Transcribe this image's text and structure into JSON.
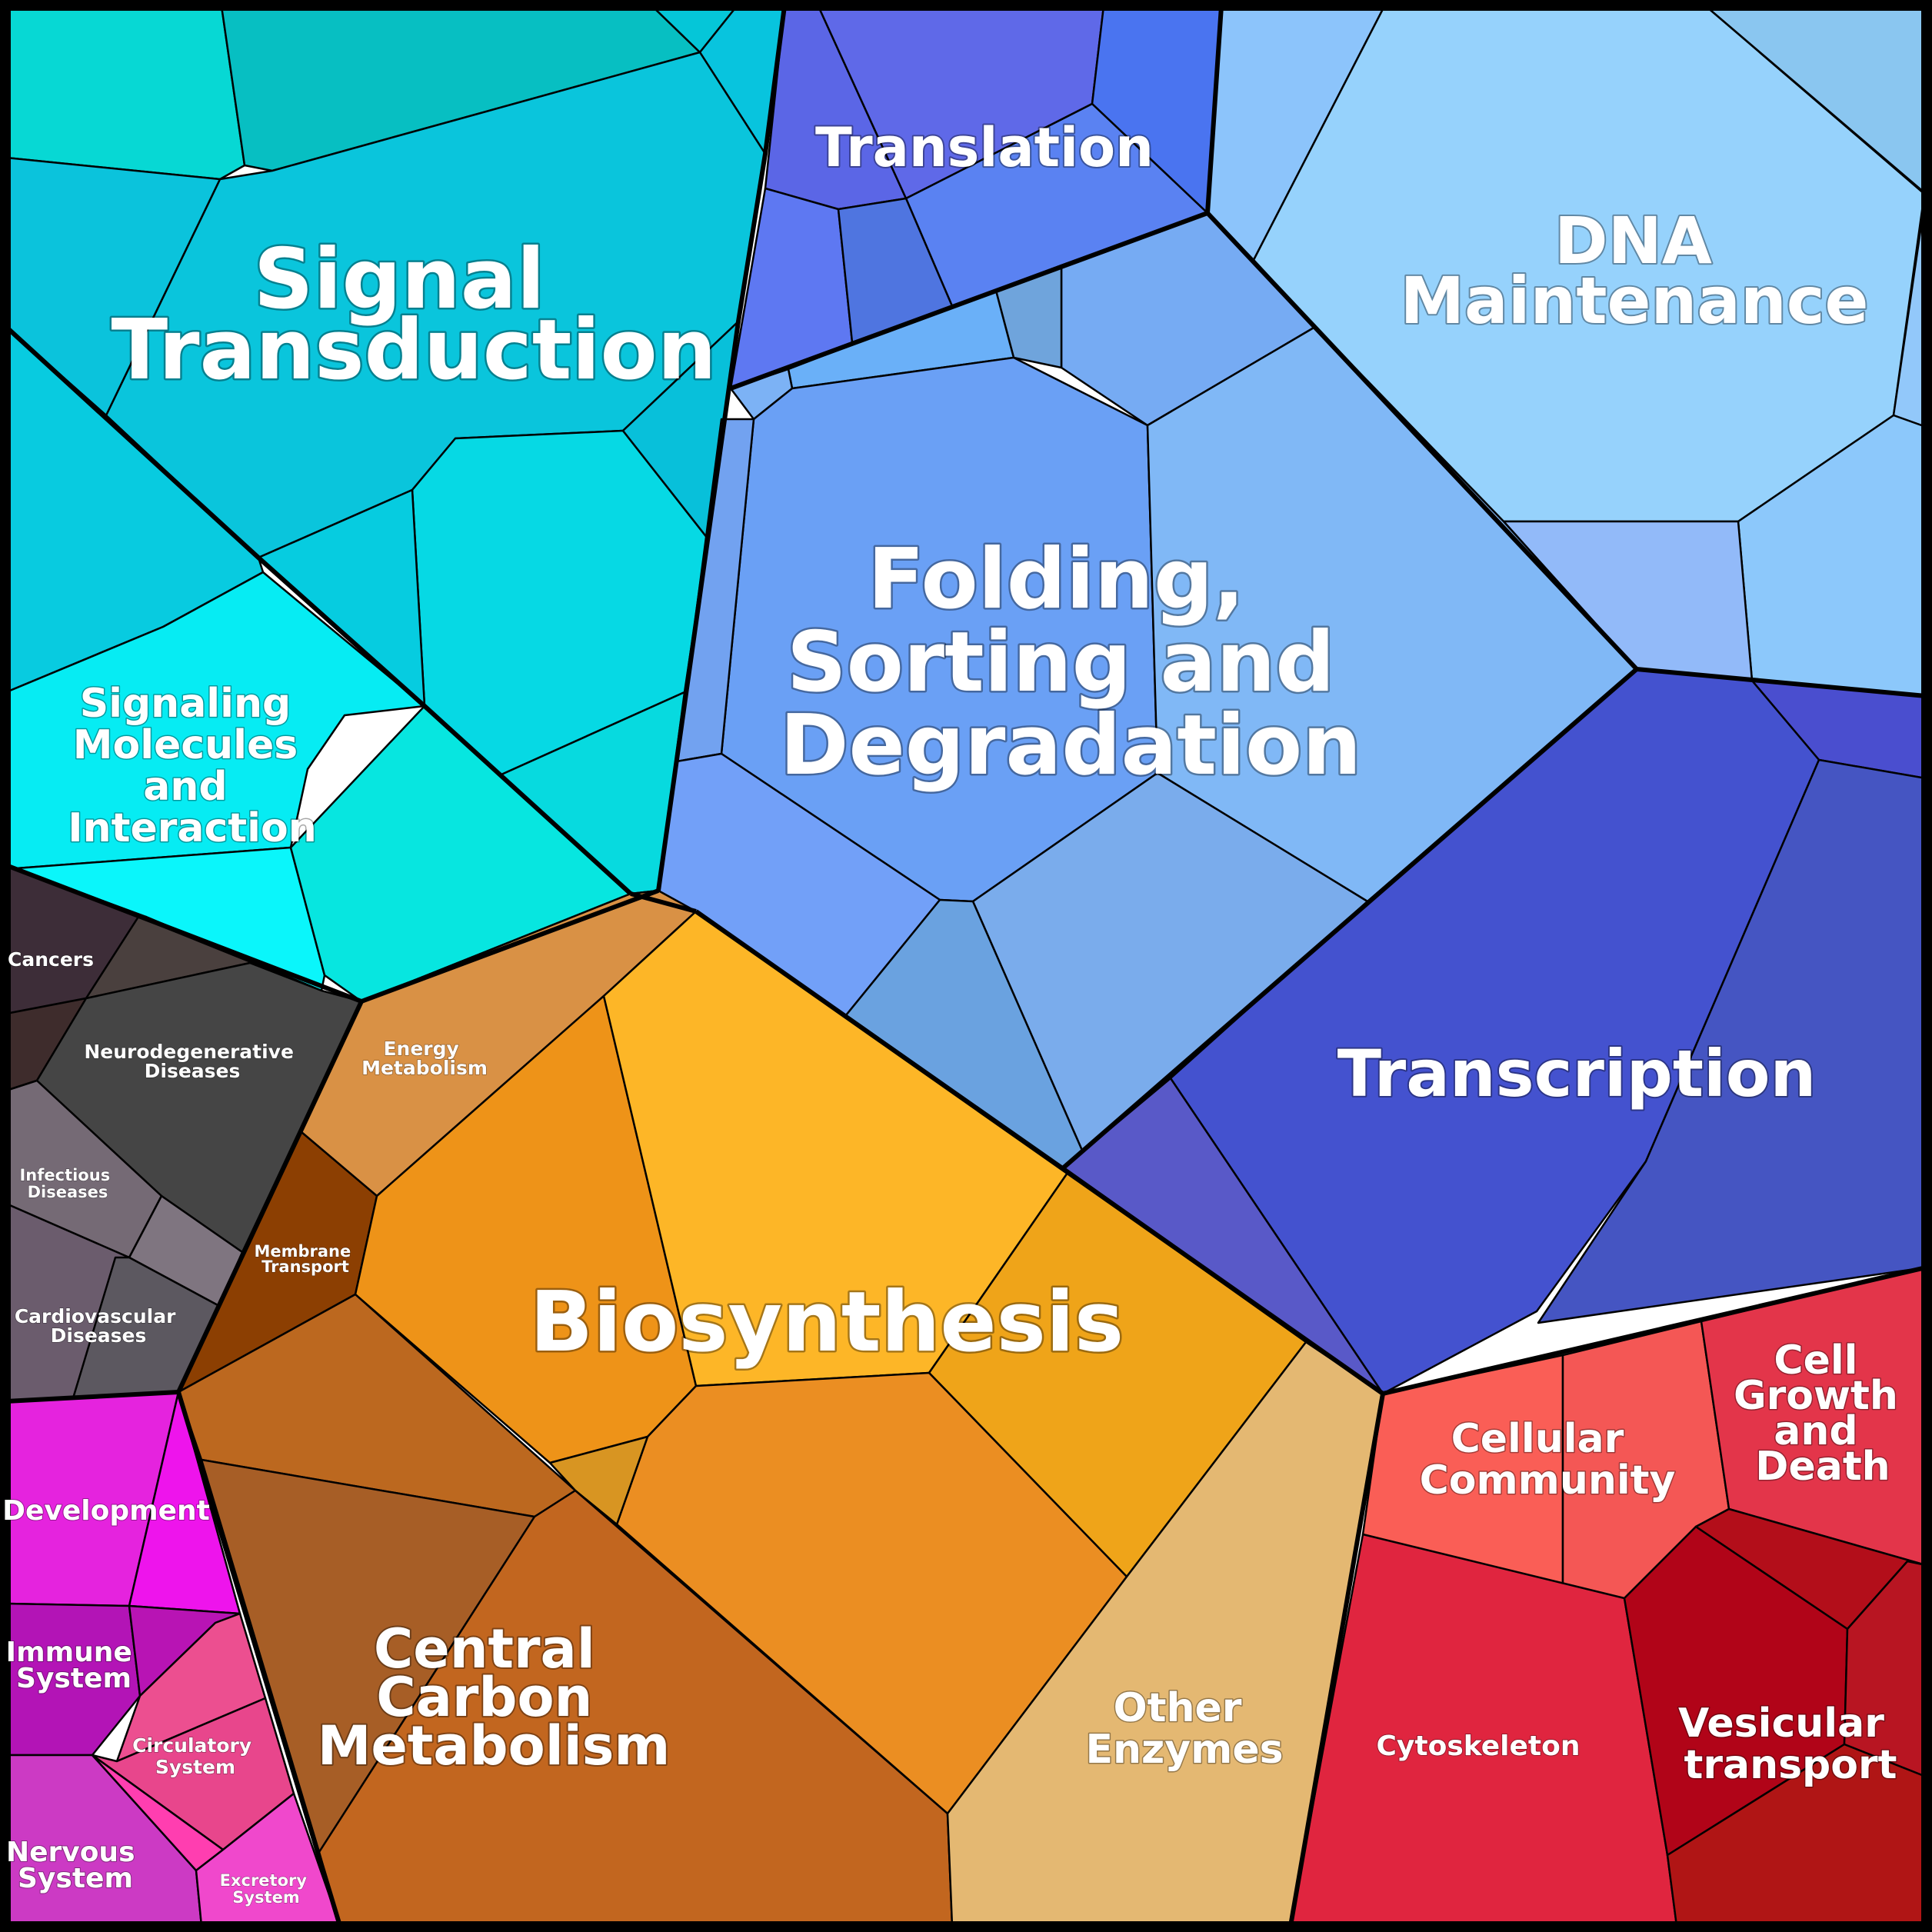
{
  "diagram": {
    "regions": [
      {
        "id": "signal-transduction",
        "lines": [
          "Signal",
          "Transduction"
        ],
        "color": "#0ac5dc"
      },
      {
        "id": "signaling-molecules",
        "lines": [
          "Signaling",
          "Molecules",
          "and",
          "Interaction"
        ],
        "color": "#08e3ea"
      },
      {
        "id": "translation",
        "lines": [
          "Translation"
        ],
        "color": "#5a6aec"
      },
      {
        "id": "dna-maintenance",
        "lines": [
          "DNA",
          "Maintenance"
        ],
        "color": "#96d2fc"
      },
      {
        "id": "folding",
        "lines": [
          "Folding,",
          "Sorting and",
          "Degradation"
        ],
        "color": "#6ea2f6"
      },
      {
        "id": "transcription",
        "lines": [
          "Transcription"
        ],
        "color": "#4554cc"
      },
      {
        "id": "cancers",
        "lines": [
          "Cancers"
        ],
        "color": "#3c2c34"
      },
      {
        "id": "neurodegenerative",
        "lines": [
          "Neurodegenerative",
          "Diseases"
        ],
        "color": "#454545"
      },
      {
        "id": "infectious",
        "lines": [
          "Infectious",
          "Diseases"
        ],
        "color": "#72676f"
      },
      {
        "id": "cardiovascular",
        "lines": [
          "Cardiovascular",
          "Diseases"
        ],
        "color": "#655a66"
      },
      {
        "id": "energy-metabolism",
        "lines": [
          "Energy",
          "Metabolism"
        ],
        "color": "#d99145"
      },
      {
        "id": "membrane-transport",
        "lines": [
          "Membrane",
          "Transport"
        ],
        "color": "#8c3f02"
      },
      {
        "id": "biosynthesis",
        "lines": [
          "Biosynthesis"
        ],
        "color": "#f0951a"
      },
      {
        "id": "central-carbon",
        "lines": [
          "Central",
          "Carbon",
          "Metabolism"
        ],
        "color": "#c0661f"
      },
      {
        "id": "other-enzymes",
        "lines": [
          "Other",
          "Enzymes"
        ],
        "color": "#e4b872"
      },
      {
        "id": "development",
        "lines": [
          "Development"
        ],
        "color": "#e520df"
      },
      {
        "id": "immune-system",
        "lines": [
          "Immune",
          "System"
        ],
        "color": "#b314b6"
      },
      {
        "id": "circulatory-system",
        "lines": [
          "Circulatory",
          "System"
        ],
        "color": "#e8508f"
      },
      {
        "id": "nervous-system",
        "lines": [
          "Nervous",
          "System"
        ],
        "color": "#cc3ac4"
      },
      {
        "id": "excretory-system",
        "lines": [
          "Excretory",
          "System"
        ],
        "color": "#f048cc"
      },
      {
        "id": "cellular-community",
        "lines": [
          "Cellular",
          "Community"
        ],
        "color": "#f55b58"
      },
      {
        "id": "cell-growth",
        "lines": [
          "Cell",
          "Growth",
          "and",
          "Death"
        ],
        "color": "#e3354a"
      },
      {
        "id": "cytoskeleton",
        "lines": [
          "Cytoskeleton"
        ],
        "color": "#e0253f"
      },
      {
        "id": "vesicular-transport",
        "lines": [
          "Vesicular",
          "transport"
        ],
        "color": "#b4121c"
      }
    ]
  }
}
